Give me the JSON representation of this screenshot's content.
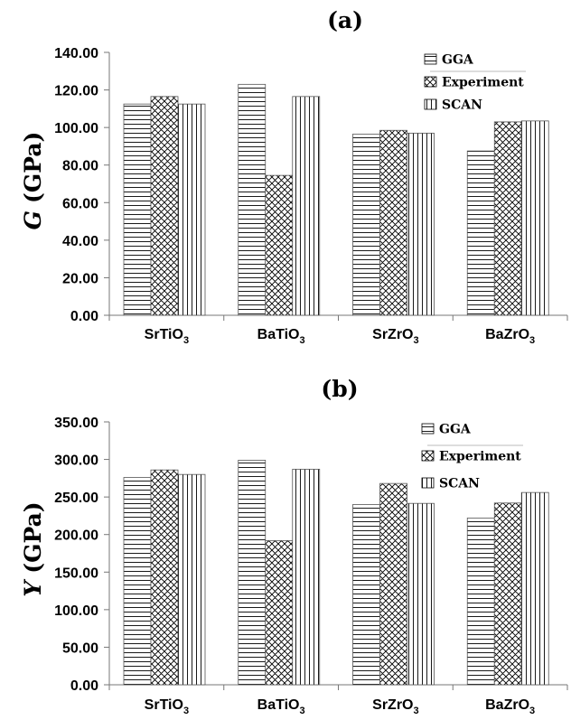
{
  "chart_data": [
    {
      "type": "bar",
      "panel_label": "(a)",
      "ylabel_symbol": "G",
      "ylabel_unit": "(GPa)",
      "categories": [
        {
          "base": "SrTiO",
          "sub": "3"
        },
        {
          "base": "BaTiO",
          "sub": "3"
        },
        {
          "base": "SrZrO",
          "sub": "3"
        },
        {
          "base": "BaZrO",
          "sub": "3"
        }
      ],
      "series": [
        {
          "name": "GGA",
          "pattern": "horizontal-lines",
          "values": [
            112.5,
            123.0,
            96.5,
            87.5
          ]
        },
        {
          "name": "Experiment",
          "pattern": "crosshatch",
          "values": [
            116.5,
            74.5,
            98.5,
            103.0
          ]
        },
        {
          "name": "SCAN",
          "pattern": "vertical-lines",
          "values": [
            112.5,
            116.5,
            97.0,
            103.5
          ]
        }
      ],
      "yticks": [
        "0.00",
        "20.00",
        "40.00",
        "60.00",
        "80.00",
        "100.00",
        "120.00",
        "140.00"
      ],
      "ylim": [
        0,
        140
      ],
      "legend_position": "top-right",
      "grid": false
    },
    {
      "type": "bar",
      "panel_label": "(b)",
      "ylabel_symbol": "Y",
      "ylabel_unit": "(GPa)",
      "categories": [
        {
          "base": "SrTiO",
          "sub": "3"
        },
        {
          "base": "BaTiO",
          "sub": "3"
        },
        {
          "base": "SrZrO",
          "sub": "3"
        },
        {
          "base": "BaZrO",
          "sub": "3"
        }
      ],
      "series": [
        {
          "name": "GGA",
          "pattern": "horizontal-lines",
          "values": [
            276.0,
            299.0,
            240.0,
            222.0
          ]
        },
        {
          "name": "Experiment",
          "pattern": "crosshatch",
          "values": [
            286.0,
            192.0,
            268.0,
            242.0
          ]
        },
        {
          "name": "SCAN",
          "pattern": "vertical-lines",
          "values": [
            280.0,
            287.0,
            241.5,
            256.0
          ]
        }
      ],
      "yticks": [
        "0.00",
        "50.00",
        "100.00",
        "150.00",
        "200.00",
        "250.00",
        "300.00",
        "350.00"
      ],
      "ylim": [
        0,
        350
      ],
      "legend_position": "top-right",
      "grid": false
    }
  ]
}
